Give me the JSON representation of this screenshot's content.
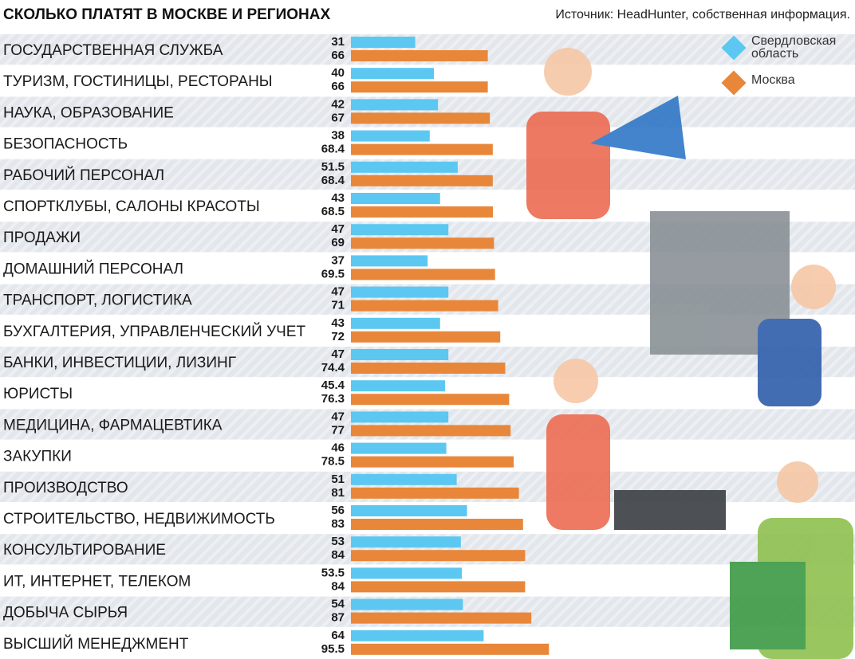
{
  "chart_data": {
    "type": "grouped-horizontal-bar",
    "title": "СКОЛЬКО ПЛАТЯТ В МОСКВЕ И РЕГИОНАХ",
    "source": "Источник: HeadHunter, собственная информация.",
    "legend": "top-right",
    "categories": [
      "ГОСУДАРСТВЕННАЯ СЛУЖБА",
      "ТУРИЗМ, ГОСТИНИЦЫ, РЕСТОРАНЫ",
      "НАУКА, ОБРАЗОВАНИЕ",
      "БЕЗОПАСНОСТЬ",
      "РАБОЧИЙ ПЕРСОНАЛ",
      "СПОРТКЛУБЫ, САЛОНЫ КРАСОТЫ",
      "ПРОДАЖИ",
      "ДОМАШНИЙ ПЕРСОНАЛ",
      "ТРАНСПОРТ, ЛОГИСТИКА",
      "БУХГАЛТЕРИЯ, УПРАВЛЕНЧЕСКИЙ УЧЕТ",
      "БАНКИ, ИНВЕСТИЦИИ, ЛИЗИНГ",
      "ЮРИСТЫ",
      "МЕДИЦИНА, ФАРМАЦЕВТИКА",
      "ЗАКУПКИ",
      "ПРОИЗВОДСТВО",
      "СТРОИТЕЛЬСТВО, НЕДВИЖИМОСТЬ",
      "КОНСУЛЬТИРОВАНИЕ",
      "ИТ, ИНТЕРНЕТ, ТЕЛЕКОМ",
      "ДОБЫЧА СЫРЬЯ",
      "ВЫСШИЙ МЕНЕДЖМЕНТ"
    ],
    "series": [
      {
        "name": "Свердловская область",
        "color": "#5cc8f2",
        "values": [
          31,
          40,
          42,
          38,
          51.5,
          43,
          47,
          37,
          47,
          43,
          47,
          45.4,
          47,
          46,
          51,
          56,
          53,
          53.5,
          54,
          64
        ]
      },
      {
        "name": "Москва",
        "color": "#e8873a",
        "values": [
          66,
          66,
          67,
          68.4,
          68.4,
          68.5,
          69,
          69.5,
          71,
          72,
          74.4,
          76.3,
          77,
          78.5,
          81,
          83,
          84,
          84,
          87,
          95.5
        ]
      }
    ]
  }
}
